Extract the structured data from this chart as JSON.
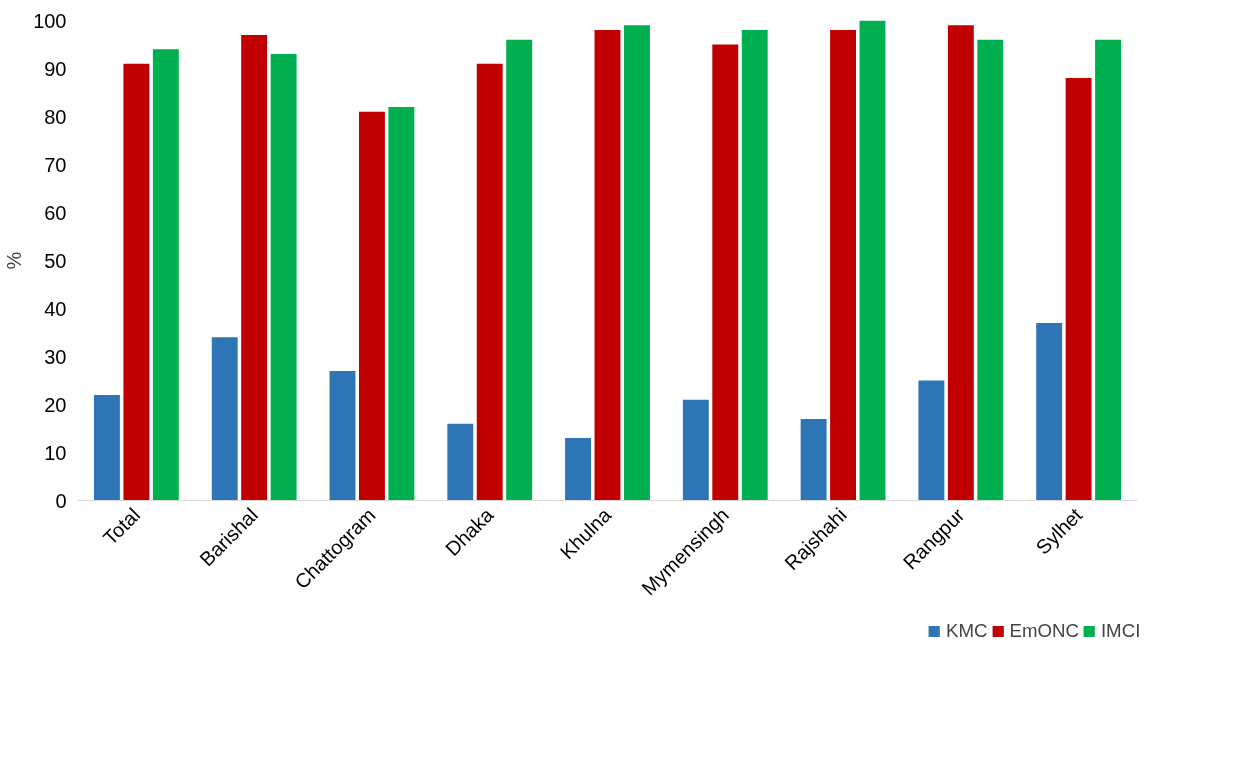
{
  "chart_data": {
    "type": "bar",
    "ylabel": "%",
    "categories": [
      "Total",
      "Barishal",
      "Chattogram",
      "Dhaka",
      "Khulna",
      "Mymensingh",
      "Rajshahi",
      "Rangpur",
      "Sylhet"
    ],
    "series": [
      {
        "name": "KMC",
        "color": "#2e75b6",
        "values": [
          22,
          34,
          27,
          16,
          13,
          21,
          17,
          25,
          37
        ]
      },
      {
        "name": "EmONC",
        "color": "#c00000",
        "values": [
          91,
          97,
          81,
          91,
          98,
          95,
          98,
          99,
          88
        ]
      },
      {
        "name": "IMCI",
        "color": "#00b050",
        "values": [
          94,
          93,
          82,
          96,
          99,
          98,
          100,
          96,
          96
        ]
      }
    ],
    "ylim": [
      0,
      100
    ],
    "yticks": [
      0,
      10,
      20,
      30,
      40,
      50,
      60,
      70,
      80,
      90,
      100
    ],
    "grid": false,
    "legend": "bottom"
  }
}
